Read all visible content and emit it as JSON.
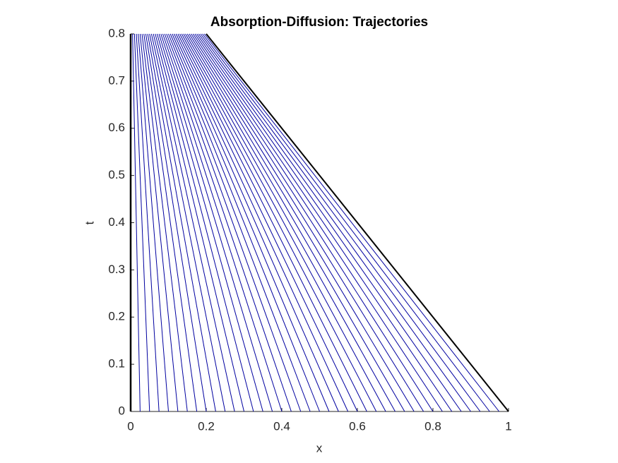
{
  "chart_data": {
    "type": "line",
    "title": "Absorption-Diffusion: Trajectories",
    "x_label": "x",
    "y_label": "t",
    "xlim": [
      0,
      1
    ],
    "ylim": [
      0,
      0.8
    ],
    "xticks": [
      0,
      0.2,
      0.4,
      0.6,
      0.8,
      1
    ],
    "yticks": [
      0,
      0.1,
      0.2,
      0.3,
      0.4,
      0.5,
      0.6,
      0.7,
      0.8
    ],
    "grid": false,
    "series": [
      {
        "color": "#000000",
        "line_width": 2.5,
        "x": [
          0,
          0
        ],
        "values": [
          0,
          0.8
        ]
      },
      {
        "color": "#0000a0",
        "x": [
          0.025,
          0.005
        ],
        "values": [
          0,
          0.8
        ]
      },
      {
        "color": "#0000a0",
        "x": [
          0.05,
          0.01
        ],
        "values": [
          0,
          0.8
        ]
      },
      {
        "color": "#0000a0",
        "x": [
          0.075,
          0.015
        ],
        "values": [
          0,
          0.8
        ]
      },
      {
        "color": "#0000a0",
        "x": [
          0.1,
          0.02
        ],
        "values": [
          0,
          0.8
        ]
      },
      {
        "color": "#0000a0",
        "x": [
          0.125,
          0.025
        ],
        "values": [
          0,
          0.8
        ]
      },
      {
        "color": "#0000a0",
        "x": [
          0.15,
          0.03
        ],
        "values": [
          0,
          0.8
        ]
      },
      {
        "color": "#0000a0",
        "x": [
          0.175,
          0.035
        ],
        "values": [
          0,
          0.8
        ]
      },
      {
        "color": "#0000a0",
        "x": [
          0.2,
          0.04
        ],
        "values": [
          0,
          0.8
        ]
      },
      {
        "color": "#0000a0",
        "x": [
          0.225,
          0.045
        ],
        "values": [
          0,
          0.8
        ]
      },
      {
        "color": "#0000a0",
        "x": [
          0.25,
          0.05
        ],
        "values": [
          0,
          0.8
        ]
      },
      {
        "color": "#0000a0",
        "x": [
          0.275,
          0.055
        ],
        "values": [
          0,
          0.8
        ]
      },
      {
        "color": "#0000a0",
        "x": [
          0.3,
          0.06
        ],
        "values": [
          0,
          0.8
        ]
      },
      {
        "color": "#0000a0",
        "x": [
          0.325,
          0.065
        ],
        "values": [
          0,
          0.8
        ]
      },
      {
        "color": "#0000a0",
        "x": [
          0.35,
          0.07
        ],
        "values": [
          0,
          0.8
        ]
      },
      {
        "color": "#0000a0",
        "x": [
          0.375,
          0.075
        ],
        "values": [
          0,
          0.8
        ]
      },
      {
        "color": "#0000a0",
        "x": [
          0.4,
          0.08
        ],
        "values": [
          0,
          0.8
        ]
      },
      {
        "color": "#0000a0",
        "x": [
          0.425,
          0.085
        ],
        "values": [
          0,
          0.8
        ]
      },
      {
        "color": "#0000a0",
        "x": [
          0.45,
          0.09
        ],
        "values": [
          0,
          0.8
        ]
      },
      {
        "color": "#0000a0",
        "x": [
          0.475,
          0.095
        ],
        "values": [
          0,
          0.8
        ]
      },
      {
        "color": "#0000a0",
        "x": [
          0.5,
          0.1
        ],
        "values": [
          0,
          0.8
        ]
      },
      {
        "color": "#0000a0",
        "x": [
          0.525,
          0.105
        ],
        "values": [
          0,
          0.8
        ]
      },
      {
        "color": "#0000a0",
        "x": [
          0.55,
          0.11
        ],
        "values": [
          0,
          0.8
        ]
      },
      {
        "color": "#0000a0",
        "x": [
          0.575,
          0.115
        ],
        "values": [
          0,
          0.8
        ]
      },
      {
        "color": "#0000a0",
        "x": [
          0.6,
          0.12
        ],
        "values": [
          0,
          0.8
        ]
      },
      {
        "color": "#0000a0",
        "x": [
          0.625,
          0.125
        ],
        "values": [
          0,
          0.8
        ]
      },
      {
        "color": "#0000a0",
        "x": [
          0.65,
          0.13
        ],
        "values": [
          0,
          0.8
        ]
      },
      {
        "color": "#0000a0",
        "x": [
          0.675,
          0.135
        ],
        "values": [
          0,
          0.8
        ]
      },
      {
        "color": "#0000a0",
        "x": [
          0.7,
          0.14
        ],
        "values": [
          0,
          0.8
        ]
      },
      {
        "color": "#0000a0",
        "x": [
          0.725,
          0.145
        ],
        "values": [
          0,
          0.8
        ]
      },
      {
        "color": "#0000a0",
        "x": [
          0.75,
          0.15
        ],
        "values": [
          0,
          0.8
        ]
      },
      {
        "color": "#0000a0",
        "x": [
          0.775,
          0.155
        ],
        "values": [
          0,
          0.8
        ]
      },
      {
        "color": "#0000a0",
        "x": [
          0.8,
          0.16
        ],
        "values": [
          0,
          0.8
        ]
      },
      {
        "color": "#0000a0",
        "x": [
          0.825,
          0.165
        ],
        "values": [
          0,
          0.8
        ]
      },
      {
        "color": "#0000a0",
        "x": [
          0.85,
          0.17
        ],
        "values": [
          0,
          0.8
        ]
      },
      {
        "color": "#0000a0",
        "x": [
          0.875,
          0.175
        ],
        "values": [
          0,
          0.8
        ]
      },
      {
        "color": "#0000a0",
        "x": [
          0.9,
          0.18
        ],
        "values": [
          0,
          0.8
        ]
      },
      {
        "color": "#0000a0",
        "x": [
          0.925,
          0.185
        ],
        "values": [
          0,
          0.8
        ]
      },
      {
        "color": "#0000a0",
        "x": [
          0.95,
          0.19
        ],
        "values": [
          0,
          0.8
        ]
      },
      {
        "color": "#0000a0",
        "x": [
          0.975,
          0.195
        ],
        "values": [
          0,
          0.8
        ]
      },
      {
        "color": "#000000",
        "line_width": 2,
        "x": [
          1,
          0.2
        ],
        "values": [
          0,
          0.8
        ]
      }
    ]
  }
}
